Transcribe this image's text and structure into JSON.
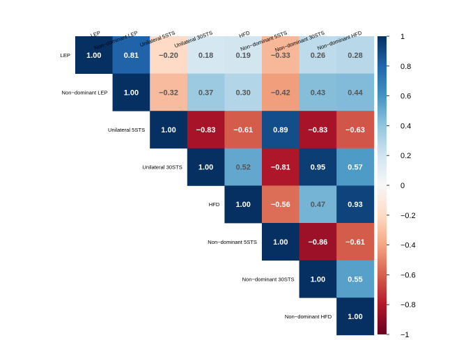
{
  "chart_data": {
    "type": "heatmap",
    "title": "",
    "variables": [
      "LEP",
      "Non−dominant LEP",
      "Unilateral 5STS",
      "Unilateral 30STS",
      "HFD",
      "Non−dominant 5STS",
      "Non−dominant 30STS",
      "Non−dominant HFD"
    ],
    "matrix": [
      [
        1.0,
        0.81,
        -0.2,
        0.18,
        0.19,
        -0.33,
        0.26,
        0.28
      ],
      [
        null,
        1.0,
        -0.32,
        0.37,
        0.3,
        -0.42,
        0.43,
        0.44
      ],
      [
        null,
        null,
        1.0,
        -0.83,
        -0.61,
        0.89,
        -0.83,
        -0.63
      ],
      [
        null,
        null,
        null,
        1.0,
        0.52,
        -0.81,
        0.95,
        0.57
      ],
      [
        null,
        null,
        null,
        null,
        1.0,
        -0.56,
        0.47,
        0.93
      ],
      [
        null,
        null,
        null,
        null,
        null,
        1.0,
        -0.86,
        -0.61
      ],
      [
        null,
        null,
        null,
        null,
        null,
        null,
        1.0,
        0.55
      ],
      [
        null,
        null,
        null,
        null,
        null,
        null,
        null,
        1.0
      ]
    ],
    "value_labels": [
      [
        "1.00",
        "0.81",
        "−0.20",
        "0.18",
        "0.19",
        "−0.33",
        "0.26",
        "0.28"
      ],
      [
        null,
        "1.00",
        "−0.32",
        "0.37",
        "0.30",
        "−0.42",
        "0.43",
        "0.44"
      ],
      [
        null,
        null,
        "1.00",
        "−0.83",
        "−0.61",
        "0.89",
        "−0.83",
        "−0.63"
      ],
      [
        null,
        null,
        null,
        "1.00",
        "0.52",
        "−0.81",
        "0.95",
        "0.57"
      ],
      [
        null,
        null,
        null,
        null,
        "1.00",
        "−0.56",
        "0.47",
        "0.93"
      ],
      [
        null,
        null,
        null,
        null,
        null,
        "1.00",
        "−0.86",
        "−0.61"
      ],
      [
        null,
        null,
        null,
        null,
        null,
        null,
        "1.00",
        "0.55"
      ],
      [
        null,
        null,
        null,
        null,
        null,
        null,
        null,
        "1.00"
      ]
    ],
    "colorbar": {
      "range": [
        -1,
        1
      ],
      "ticks": [
        1,
        0.8,
        0.6,
        0.4,
        0.2,
        0,
        -0.2,
        -0.4,
        -0.6,
        -0.8,
        -1
      ],
      "tick_labels": [
        "1",
        "0.8",
        "0.6",
        "0.4",
        "0.2",
        "0",
        "−0.2",
        "−0.4",
        "−0.6",
        "−0.8",
        "−1"
      ],
      "colormap": "RdBu",
      "stops": [
        "#67001f",
        "#b2182b",
        "#d6604d",
        "#f4a582",
        "#fddbc7",
        "#f7f7f7",
        "#d1e5f0",
        "#92c5de",
        "#4393c3",
        "#2166ac",
        "#053061"
      ]
    }
  }
}
